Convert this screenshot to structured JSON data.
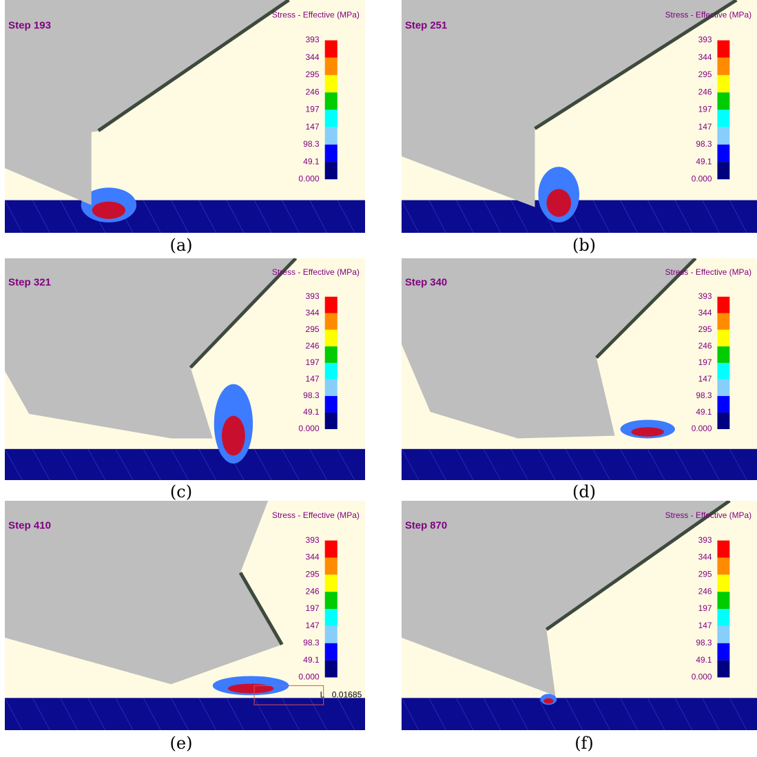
{
  "legend": {
    "title": "Stress - Effective (MPa)",
    "labels": [
      "393",
      "344",
      "295",
      "246",
      "197",
      "147",
      "98.3",
      "49.1",
      "0.000"
    ]
  },
  "panels": [
    {
      "step": "Step 193",
      "caption": "(a)"
    },
    {
      "step": "Step 251",
      "caption": "(b)"
    },
    {
      "step": "Step 321",
      "caption": "(c)"
    },
    {
      "step": "Step 340",
      "caption": "(d)"
    },
    {
      "step": "Step 410",
      "caption": "(e)",
      "measure": {
        "symbol": "L",
        "value": "0.01685"
      }
    },
    {
      "step": "Step 870",
      "caption": "(f)"
    }
  ]
}
